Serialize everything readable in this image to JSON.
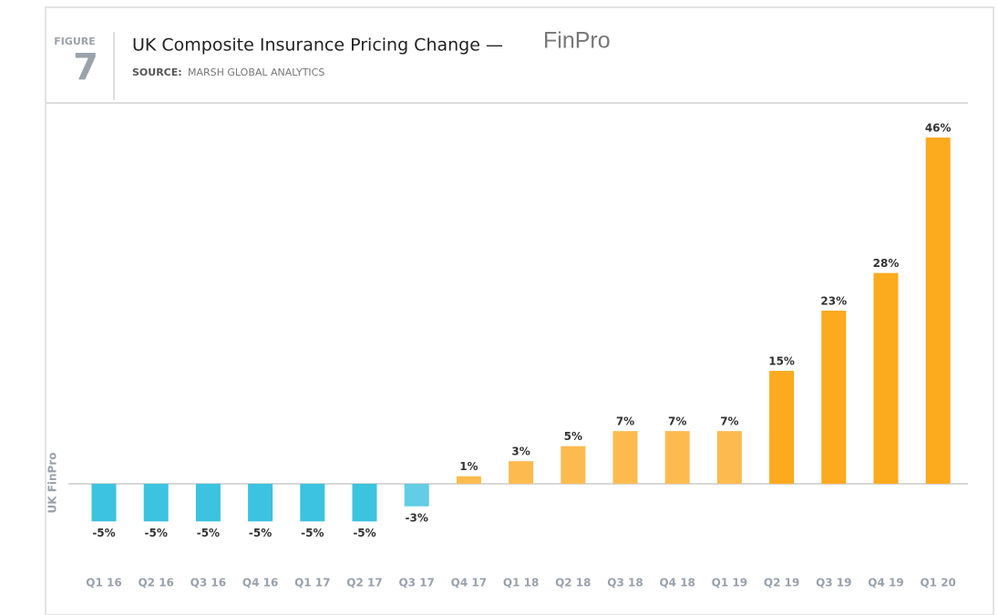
{
  "chart_data": {
    "type": "bar",
    "figure_label": "FIGURE",
    "figure_number": "7",
    "title": "UK Composite Insurance Pricing Change —",
    "title_suffix": "FinPro",
    "source_label": "SOURCE:",
    "source": "MARSH GLOBAL ANALYTICS",
    "y_label": "UK FinPro",
    "categories": [
      "Q1 16",
      "Q2 16",
      "Q3 16",
      "Q4 16",
      "Q1 17",
      "Q2 17",
      "Q3 17",
      "Q4 17",
      "Q1 18",
      "Q2 18",
      "Q3 18",
      "Q4 18",
      "Q1 19",
      "Q2 19",
      "Q3 19",
      "Q4 19",
      "Q1 20"
    ],
    "values": [
      -5,
      -5,
      -5,
      -5,
      -5,
      -5,
      -3,
      1,
      3,
      5,
      7,
      7,
      7,
      15,
      23,
      28,
      46
    ],
    "value_labels": [
      "-5%",
      "-5%",
      "-5%",
      "-5%",
      "-5%",
      "-5%",
      "-3%",
      "1%",
      "3%",
      "5%",
      "7%",
      "7%",
      "7%",
      "15%",
      "23%",
      "28%",
      "46%"
    ],
    "colors": [
      "#3bc3df",
      "#3bc3df",
      "#3bc3df",
      "#3bc3df",
      "#3bc3df",
      "#3bc3df",
      "#62cde4",
      "#fdbb4f",
      "#fdbb4f",
      "#fdbb4f",
      "#fdbb4f",
      "#fdbb4f",
      "#fdbb4f",
      "#fcaa1e",
      "#fcaa1e",
      "#fcaa1e",
      "#fcaa1e"
    ],
    "ylim": [
      -7,
      48
    ]
  }
}
